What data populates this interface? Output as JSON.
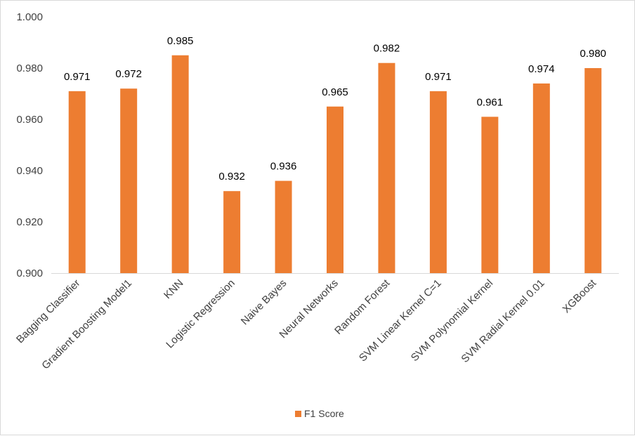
{
  "chart_data": {
    "type": "bar",
    "title": "",
    "xlabel": "",
    "ylabel": "",
    "categories": [
      "Bagging Classifier",
      "Gradient Boosting Model1",
      "KNN",
      "Logistic Regression",
      "Naive Bayes",
      "Neural Networks",
      "Random Forest",
      "SVM Linear Kernel C=1",
      "SVM Polynomial Kernel",
      "SVM Radial Kernel 0.01",
      "XGBoost"
    ],
    "series": [
      {
        "name": "F1 Score",
        "color": "#ED7D31",
        "values": [
          0.971,
          0.972,
          0.985,
          0.932,
          0.936,
          0.965,
          0.982,
          0.971,
          0.961,
          0.974,
          0.98
        ],
        "labels": [
          "0.971",
          "0.972",
          "0.985",
          "0.932",
          "0.936",
          "0.965",
          "0.982",
          "0.971",
          "0.961",
          "0.974",
          "0.980"
        ]
      }
    ],
    "ylim": [
      0.9,
      1.0
    ],
    "yticks": [
      0.9,
      0.92,
      0.94,
      0.96,
      0.98,
      1.0
    ],
    "ytick_labels": [
      "0.900",
      "0.920",
      "0.940",
      "0.960",
      "0.980",
      "1.000"
    ],
    "grid": false,
    "legend": {
      "position": "bottom",
      "entries": [
        "F1 Score"
      ]
    }
  }
}
